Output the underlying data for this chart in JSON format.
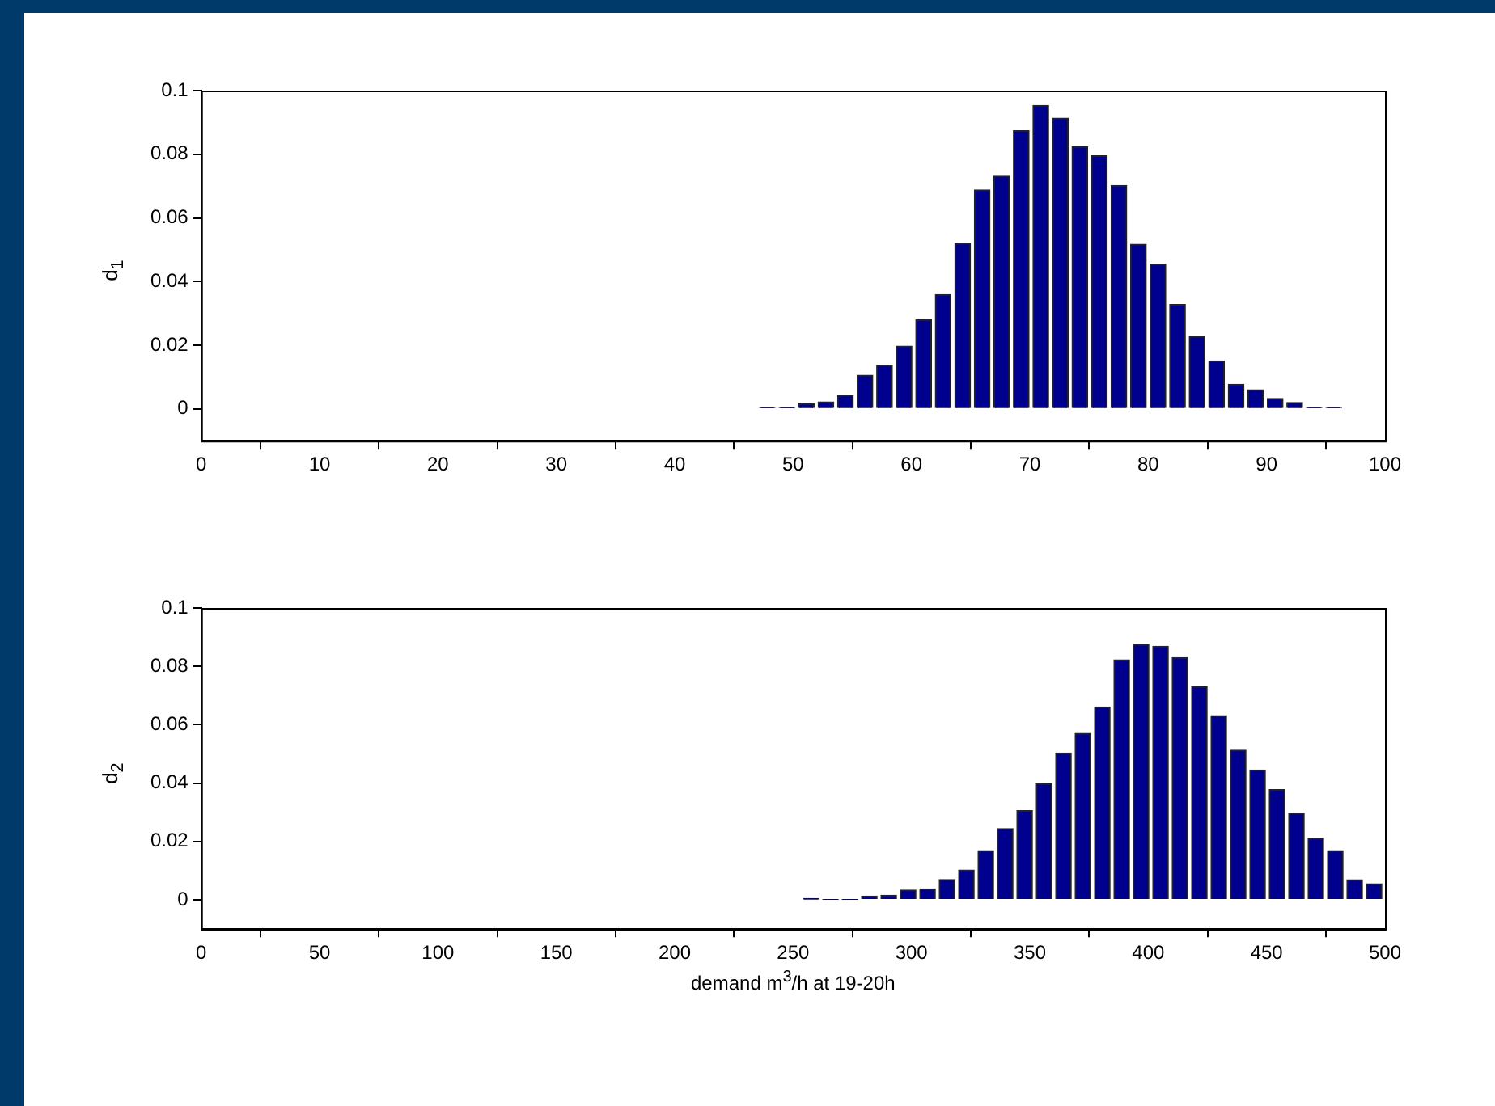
{
  "chart_data": [
    {
      "type": "histogram",
      "ylabel": "d$_{1}$",
      "color": "#00008f",
      "grid": false,
      "bins": [
        47.0,
        48.65,
        50.3,
        51.95,
        53.6,
        55.25,
        56.9,
        58.55,
        60.2,
        61.85,
        63.5,
        65.15,
        66.8,
        68.45,
        70.1,
        71.75,
        73.4,
        75.05,
        76.7,
        78.35,
        80.0,
        81.65,
        83.3,
        84.95,
        86.6,
        88.25,
        89.9,
        91.55,
        93.2,
        94.85,
        96.5
      ],
      "values": [
        0.0003,
        0.0003,
        0.0016,
        0.0022,
        0.0043,
        0.0106,
        0.0137,
        0.0197,
        0.028,
        0.0359,
        0.052,
        0.0688,
        0.0731,
        0.0874,
        0.0953,
        0.0913,
        0.0824,
        0.0795,
        0.0702,
        0.0517,
        0.0454,
        0.0328,
        0.0227,
        0.0151,
        0.0077,
        0.006,
        0.0033,
        0.002,
        0.0003,
        0.0003
      ],
      "xlim": [
        0,
        100
      ],
      "xticks": [
        0,
        10,
        20,
        30,
        40,
        50,
        60,
        70,
        80,
        90,
        100
      ],
      "ylim": [
        -0.01,
        0.1
      ],
      "yticks": [
        0,
        0.02,
        0.04,
        0.06,
        0.08,
        0.1
      ]
    },
    {
      "type": "histogram",
      "ylabel": "d$_{2}$",
      "xlabel": "demand m$^{3}$/h at 19-20h",
      "color": "#00008f",
      "grid": false,
      "bins": [
        253.5,
        261.7,
        269.9,
        278.1,
        286.3,
        294.5,
        302.7,
        310.9,
        319.1,
        327.3,
        335.5,
        343.7,
        351.9,
        360.1,
        368.3,
        376.5,
        384.7,
        392.9,
        401.1,
        409.3,
        417.5,
        425.7,
        433.9,
        442.1,
        450.3,
        458.5,
        466.7,
        474.9,
        483.1,
        491.3,
        499.5
      ],
      "values": [
        0.0005,
        0.0002,
        0.0002,
        0.0013,
        0.0016,
        0.0034,
        0.0038,
        0.007,
        0.0102,
        0.0169,
        0.0244,
        0.0306,
        0.0398,
        0.0503,
        0.057,
        0.0661,
        0.0822,
        0.0875,
        0.0869,
        0.083,
        0.073,
        0.0631,
        0.0513,
        0.0445,
        0.0378,
        0.0297,
        0.0211,
        0.0169,
        0.0069,
        0.0055
      ],
      "xlim": [
        0,
        500
      ],
      "xticks": [
        0,
        50,
        100,
        150,
        200,
        250,
        300,
        350,
        400,
        450,
        500
      ],
      "ylim": [
        -0.01,
        0.1
      ],
      "yticks": [
        0,
        0.02,
        0.04,
        0.06,
        0.08,
        0.1
      ]
    }
  ]
}
